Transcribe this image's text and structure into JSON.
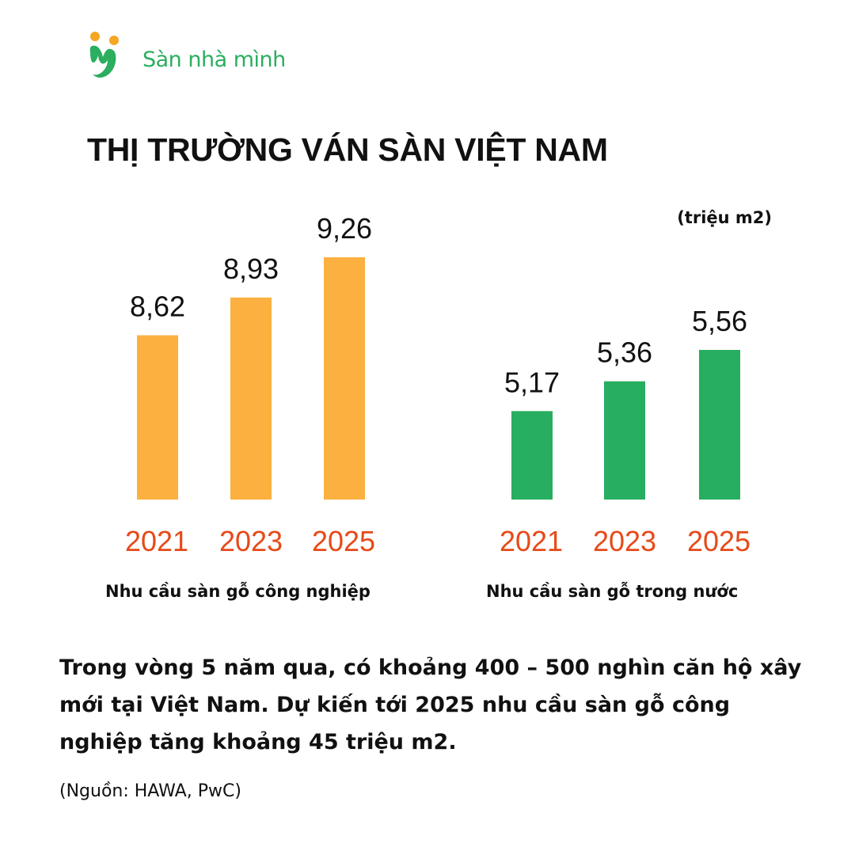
{
  "brand": {
    "name": "Sàn nhà mình",
    "green": "#2bae5f",
    "orange": "#f5a623",
    "logo_icon": "people-m-logo-icon"
  },
  "title": "THỊ TRƯỜNG VÁN SÀN VIỆT NAM",
  "unit_label": "(triệu m2)",
  "chart_data": [
    {
      "type": "bar",
      "categories": [
        "2021",
        "2023",
        "2025"
      ],
      "values": [
        8.62,
        8.93,
        9.26
      ],
      "value_labels": [
        "8,62",
        "8,93",
        "9,26"
      ],
      "title": "",
      "xlabel": "Nhu cầu sàn gỗ công nghiệp",
      "ylabel": "",
      "color": "#fbb040",
      "tick_color": "#e64a19"
    },
    {
      "type": "bar",
      "categories": [
        "2021",
        "2023",
        "2025"
      ],
      "values": [
        5.17,
        5.36,
        5.56
      ],
      "value_labels": [
        "5,17",
        "5,36",
        "5,56"
      ],
      "title": "",
      "xlabel": "Nhu cầu sàn gỗ trong nước",
      "ylabel": "",
      "color": "#27ae60",
      "tick_color": "#e64a19"
    }
  ],
  "paragraph": "Trong vòng 5 năm qua, có khoảng 400 – 500 nghìn căn hộ xây mới tại Việt Nam. Dự kiến tới 2025 nhu cầu sàn gỗ công nghiệp tăng khoảng 45 triệu m2.",
  "source": "(Nguồn: HAWA, PwC)"
}
